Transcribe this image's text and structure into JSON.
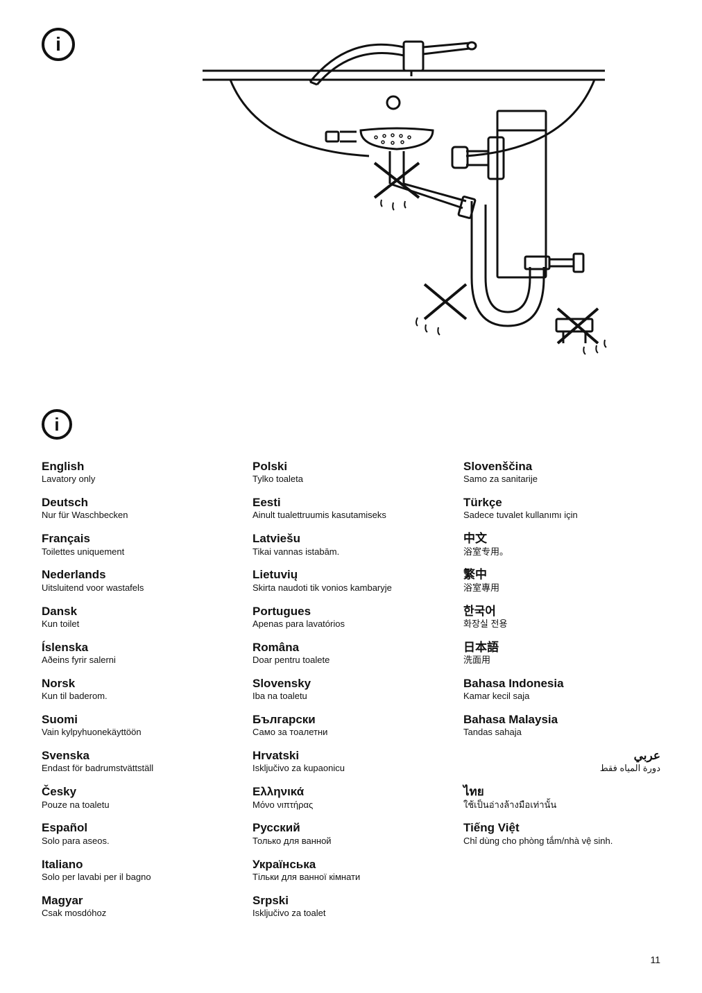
{
  "page_number": "11",
  "info_glyph": "i",
  "columns": [
    [
      {
        "lang": "English",
        "text": "Lavatory only"
      },
      {
        "lang": "Deutsch",
        "text": "Nur für Waschbecken"
      },
      {
        "lang": "Français",
        "text": "Toilettes uniquement"
      },
      {
        "lang": "Nederlands",
        "text": "Uitsluitend voor wastafels"
      },
      {
        "lang": "Dansk",
        "text": "Kun toilet"
      },
      {
        "lang": "Íslenska",
        "text": "Aðeins fyrir salerni"
      },
      {
        "lang": "Norsk",
        "text": "Kun til baderom."
      },
      {
        "lang": "Suomi",
        "text": "Vain kylpyhuonekäyttöön"
      },
      {
        "lang": "Svenska",
        "text": "Endast för badrumstvättställ"
      },
      {
        "lang": "Česky",
        "text": "Pouze na toaletu"
      },
      {
        "lang": "Español",
        "text": "Solo para aseos."
      },
      {
        "lang": "Italiano",
        "text": "Solo per lavabi per il bagno"
      },
      {
        "lang": "Magyar",
        "text": "Csak mosdóhoz"
      }
    ],
    [
      {
        "lang": "Polski",
        "text": "Tylko toaleta"
      },
      {
        "lang": "Eesti",
        "text": "Ainult tualettruumis kasutamiseks"
      },
      {
        "lang": "Latviešu",
        "text": "Tikai vannas istabām."
      },
      {
        "lang": "Lietuvių",
        "text": "Skirta naudoti tik vonios kambaryje"
      },
      {
        "lang": "Portugues",
        "text": "Apenas para lavatórios"
      },
      {
        "lang": "Româna",
        "text": "Doar pentru toalete"
      },
      {
        "lang": "Slovensky",
        "text": "Iba na toaletu"
      },
      {
        "lang": "Български",
        "text": "Само за тоалетни"
      },
      {
        "lang": "Hrvatski",
        "text": "Isključivo za kupaonicu"
      },
      {
        "lang": "Ελληνικά",
        "text": "Μόνο νιπτήρας"
      },
      {
        "lang": "Русский",
        "text": "Только для ванной"
      },
      {
        "lang": "Українська",
        "text": "Тільки для ванної кімнати"
      },
      {
        "lang": "Srpski",
        "text": "Isključivo za toalet"
      }
    ],
    [
      {
        "lang": "Slovenščina",
        "text": "Samo za sanitarije"
      },
      {
        "lang": "Türkçe",
        "text": "Sadece tuvalet kullanımı için"
      },
      {
        "lang": "中文",
        "text": "浴室专用。"
      },
      {
        "lang": "繁中",
        "text": "浴室專用"
      },
      {
        "lang": "한국어",
        "text": "화장실 전용"
      },
      {
        "lang": "日本語",
        "text": "洗面用"
      },
      {
        "lang": "Bahasa Indonesia",
        "text": "Kamar kecil saja"
      },
      {
        "lang": "Bahasa Malaysia",
        "text": "Tandas sahaja"
      },
      {
        "lang": "عربي",
        "text": "دورة المياه فقط",
        "rtl": true
      },
      {
        "lang": "ไทย",
        "text": "ใช้เป็นอ่างล้างมือเท่านั้น"
      },
      {
        "lang": "Tiếng Việt",
        "text": "Chỉ dùng cho phòng tắm/nhà vệ sinh."
      }
    ]
  ]
}
